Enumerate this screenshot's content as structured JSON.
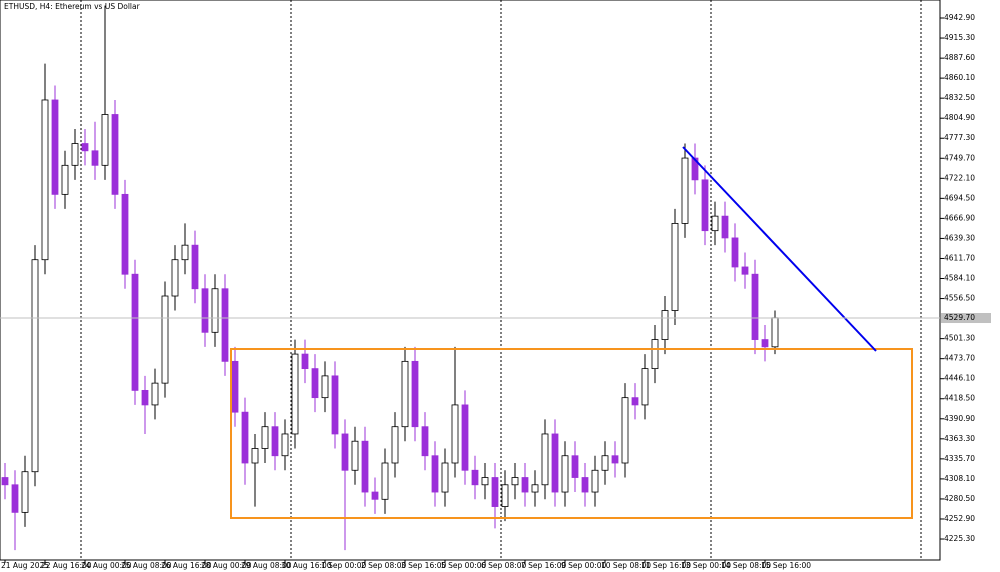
{
  "chart_data": {
    "type": "candlestick",
    "title": "ETHUSD, H4: Ethereum vs US Dollar",
    "categories": [
      "21 Aug 2025",
      null,
      null,
      null,
      "22 Aug 16:00",
      null,
      null,
      null,
      "24 Aug 00:00",
      null,
      null,
      null,
      "25 Aug 08:00",
      null,
      null,
      null,
      "26 Aug 16:00",
      null,
      null,
      null,
      "28 Aug 00:00",
      null,
      null,
      null,
      "29 Aug 08:00",
      null,
      null,
      null,
      "30 Aug 16:00",
      null,
      null,
      null,
      "1 Sep 00:00",
      null,
      null,
      null,
      "2 Sep 08:00",
      null,
      null,
      null,
      "3 Sep 16:00",
      null,
      null,
      null,
      "5 Sep 00:00",
      null,
      null,
      null,
      "6 Sep 08:00",
      null,
      null,
      null,
      "7 Sep 16:00",
      null,
      null,
      null,
      "9 Sep 00:00",
      null,
      null,
      null,
      "10 Sep 08:00",
      null,
      null,
      null,
      "11 Sep 16:00",
      null,
      null,
      null,
      "13 Sep 00:00",
      null,
      null,
      null,
      "14 Sep 08:00",
      null,
      null,
      null,
      "15 Sep 16:00",
      null
    ],
    "open": [
      4310,
      4300,
      4262,
      4318,
      4610,
      4830,
      4700,
      4740,
      4770,
      4760,
      4740,
      4810,
      4700,
      4590,
      4430,
      4410,
      4440,
      4560,
      4610,
      4630,
      4570,
      4510,
      4570,
      4470,
      4400,
      4330,
      4350,
      4380,
      4340,
      4370,
      4480,
      4460,
      4420,
      4450,
      4370,
      4320,
      4360,
      4290,
      4280,
      4330,
      4380,
      4470,
      4380,
      4340,
      4290,
      4330,
      4410,
      4320,
      4300,
      4310,
      4270,
      4300,
      4310,
      4290,
      4300,
      4370,
      4290,
      4340,
      4310,
      4290,
      4320,
      4340,
      4330,
      4420,
      4410,
      4460,
      4500,
      4540,
      4660,
      4750,
      4720,
      4650,
      4670,
      4640,
      4600,
      4590,
      4500,
      4490
    ],
    "high": [
      4330,
      4320,
      4340,
      4630,
      4880,
      4850,
      4760,
      4790,
      4790,
      4800,
      4960,
      4830,
      4720,
      4610,
      4450,
      4460,
      4580,
      4630,
      4660,
      4650,
      4590,
      4590,
      4590,
      4490,
      4420,
      4370,
      4400,
      4400,
      4390,
      4500,
      4500,
      4480,
      4470,
      4470,
      4390,
      4380,
      4380,
      4310,
      4350,
      4400,
      4490,
      4490,
      4400,
      4360,
      4350,
      4490,
      4430,
      4340,
      4330,
      4330,
      4320,
      4330,
      4330,
      4320,
      4390,
      4390,
      4360,
      4360,
      4330,
      4340,
      4360,
      4360,
      4440,
      4440,
      4480,
      4520,
      4560,
      4680,
      4770,
      4770,
      4740,
      4690,
      4690,
      4660,
      4620,
      4610,
      4520,
      4540
    ],
    "low": [
      4280,
      4210,
      4242,
      4298,
      4590,
      4680,
      4680,
      4720,
      4740,
      4720,
      4720,
      4680,
      4570,
      4410,
      4370,
      4390,
      4420,
      4540,
      4590,
      4550,
      4490,
      4490,
      4450,
      4380,
      4300,
      4270,
      4330,
      4320,
      4320,
      4350,
      4440,
      4400,
      4400,
      4350,
      4210,
      4300,
      4270,
      4260,
      4260,
      4310,
      4360,
      4360,
      4320,
      4270,
      4270,
      4310,
      4300,
      4280,
      4280,
      4240,
      4250,
      4280,
      4270,
      4270,
      4280,
      4270,
      4270,
      4290,
      4270,
      4270,
      4300,
      4310,
      4310,
      4390,
      4390,
      4440,
      4480,
      4520,
      4640,
      4700,
      4630,
      4630,
      4620,
      4580,
      4570,
      4480,
      4470,
      4480
    ],
    "close": [
      4300,
      4262,
      4318,
      4610,
      4830,
      4700,
      4740,
      4770,
      4760,
      4740,
      4810,
      4700,
      4590,
      4430,
      4410,
      4440,
      4560,
      4610,
      4630,
      4570,
      4510,
      4570,
      4470,
      4400,
      4330,
      4350,
      4380,
      4340,
      4370,
      4480,
      4460,
      4420,
      4450,
      4370,
      4320,
      4360,
      4290,
      4280,
      4330,
      4380,
      4470,
      4380,
      4340,
      4290,
      4330,
      4410,
      4320,
      4300,
      4310,
      4270,
      4300,
      4310,
      4290,
      4300,
      4370,
      4290,
      4340,
      4310,
      4290,
      4320,
      4340,
      4330,
      4420,
      4410,
      4460,
      4500,
      4540,
      4660,
      4750,
      4720,
      4650,
      4670,
      4640,
      4600,
      4590,
      4500,
      4490,
      4530
    ],
    "up_color": "#ffffff",
    "down_color": "#9b30d9",
    "current_price": {
      "value": 4529.7,
      "label": "4529.70"
    },
    "ylim": [
      4196.4,
      4967.7
    ],
    "yticks": [
      {
        "value": 4942.9,
        "label": "4942.90"
      },
      {
        "value": 4915.3,
        "label": "4915.30"
      },
      {
        "value": 4887.6,
        "label": "4887.60"
      },
      {
        "value": 4860.1,
        "label": "4860.10"
      },
      {
        "value": 4832.5,
        "label": "4832.50"
      },
      {
        "value": 4804.9,
        "label": "4804.90"
      },
      {
        "value": 4777.3,
        "label": "4777.30"
      },
      {
        "value": 4749.7,
        "label": "4749.70"
      },
      {
        "value": 4722.1,
        "label": "4722.10"
      },
      {
        "value": 4694.5,
        "label": "4694.50"
      },
      {
        "value": 4666.9,
        "label": "4666.90"
      },
      {
        "value": 4639.3,
        "label": "4639.30"
      },
      {
        "value": 4611.7,
        "label": "4611.70"
      },
      {
        "value": 4584.1,
        "label": "4584.10"
      },
      {
        "value": 4556.5,
        "label": "4556.50"
      },
      {
        "value": 4501.3,
        "label": "4501.30"
      },
      {
        "value": 4473.7,
        "label": "4473.70"
      },
      {
        "value": 4446.1,
        "label": "4446.10"
      },
      {
        "value": 4418.5,
        "label": "4418.50"
      },
      {
        "value": 4390.9,
        "label": "4390.90"
      },
      {
        "value": 4363.3,
        "label": "4363.30"
      },
      {
        "value": 4335.7,
        "label": "4335.70"
      },
      {
        "value": 4308.1,
        "label": "4308.10"
      },
      {
        "value": 4280.5,
        "label": "4280.50"
      },
      {
        "value": 4252.9,
        "label": "4252.90"
      },
      {
        "value": 4225.3,
        "label": "4225.30"
      }
    ]
  }
}
